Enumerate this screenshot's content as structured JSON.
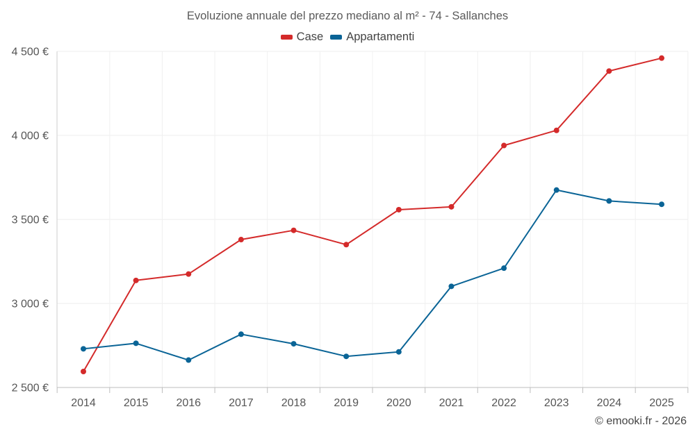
{
  "chart_data": {
    "type": "line",
    "title": "Evoluzione annuale del prezzo mediano al m² - 74 - Sallanches",
    "categories": [
      "2014",
      "2015",
      "2016",
      "2017",
      "2018",
      "2019",
      "2020",
      "2021",
      "2022",
      "2023",
      "2024",
      "2025"
    ],
    "series": [
      {
        "name": "Case",
        "color": "#d42a2a",
        "values": [
          2595,
          3137,
          3175,
          3380,
          3435,
          3350,
          3558,
          3575,
          3940,
          4030,
          4383,
          4460
        ]
      },
      {
        "name": "Appartamenti",
        "color": "#0a6496",
        "values": [
          2730,
          2763,
          2663,
          2817,
          2760,
          2685,
          2712,
          3102,
          3210,
          3675,
          3610,
          3590
        ]
      }
    ],
    "ylim": [
      2500,
      4500
    ],
    "yticks": [
      2500,
      3000,
      3500,
      4000,
      4500
    ],
    "ytick_labels": [
      "2 500 €",
      "3 000 €",
      "3 500 €",
      "4 000 €",
      "4 500 €"
    ],
    "xlabel": "",
    "ylabel": "",
    "grid": true,
    "legend_position": "top-center"
  },
  "credit": "© emooki.fr - 2026"
}
